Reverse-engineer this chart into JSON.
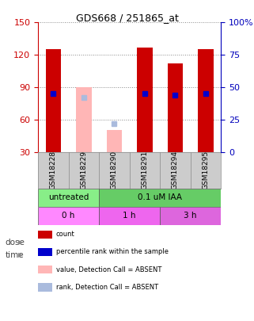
{
  "title": "GDS668 / 251865_at",
  "samples": [
    "GSM18228",
    "GSM18229",
    "GSM18290",
    "GSM18291",
    "GSM18294",
    "GSM18295"
  ],
  "ylim_left": [
    30,
    150
  ],
  "ylim_right": [
    0,
    100
  ],
  "yticks_left": [
    30,
    60,
    90,
    120,
    150
  ],
  "yticks_right": [
    0,
    25,
    50,
    75,
    100
  ],
  "bar_data": [
    {
      "x": 0,
      "type": "present",
      "count": 125,
      "rank": 45
    },
    {
      "x": 1,
      "type": "absent",
      "count": 90,
      "rank": 42
    },
    {
      "x": 2,
      "type": "absent",
      "count": 50,
      "rank": 22
    },
    {
      "x": 3,
      "type": "present",
      "count": 127,
      "rank": 45
    },
    {
      "x": 4,
      "type": "present",
      "count": 112,
      "rank": 44
    },
    {
      "x": 5,
      "type": "present",
      "count": 125,
      "rank": 45
    }
  ],
  "bar_width": 0.5,
  "present_bar_color": "#cc0000",
  "absent_bar_color": "#ffb6b6",
  "present_rank_color": "#0000cc",
  "absent_rank_color": "#aabbdd",
  "rank_marker_size": 5,
  "dose_row": [
    {
      "label": "untreated",
      "cols": [
        0,
        1
      ],
      "color": "#88ee88"
    },
    {
      "label": "0.1 uM IAA",
      "cols": [
        2,
        3,
        4,
        5
      ],
      "color": "#66cc66"
    }
  ],
  "time_row": [
    {
      "label": "0 h",
      "cols": [
        0,
        1
      ],
      "color": "#ff88ff"
    },
    {
      "label": "1 h",
      "cols": [
        2,
        3
      ],
      "color": "#ee66ee"
    },
    {
      "label": "3 h",
      "cols": [
        4,
        5
      ],
      "color": "#dd66dd"
    }
  ],
  "legend_items": [
    {
      "color": "#cc0000",
      "label": "count"
    },
    {
      "color": "#0000cc",
      "label": "percentile rank within the sample"
    },
    {
      "color": "#ffb6b6",
      "label": "value, Detection Call = ABSENT"
    },
    {
      "color": "#aabbdd",
      "label": "rank, Detection Call = ABSENT"
    }
  ],
  "left_axis_color": "#cc0000",
  "right_axis_color": "#0000bb",
  "grid_color": "#888888",
  "bg_color": "#ffffff",
  "sample_row_color": "#cccccc"
}
